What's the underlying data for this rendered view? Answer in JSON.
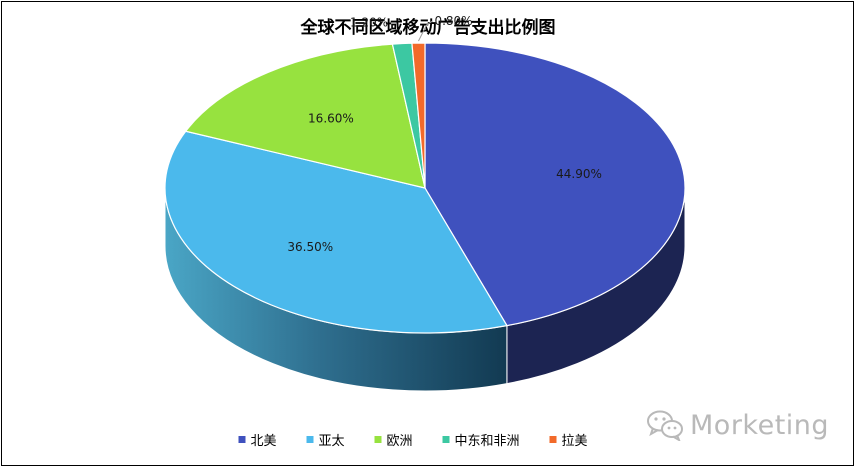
{
  "chart_data": {
    "type": "pie",
    "title": "全球不同区域移动广告支出比例图",
    "categories": [
      "北美",
      "亚太",
      "欧洲",
      "中东和非洲",
      "拉美"
    ],
    "values": [
      44.9,
      36.5,
      16.6,
      1.2,
      0.8
    ],
    "data_labels": [
      "44.90%",
      "36.50%",
      "16.60%",
      "1.20%",
      "0.80%"
    ],
    "colors": [
      "#3F51BE",
      "#4BB9EC",
      "#97E23F",
      "#3CC8A2",
      "#F26A2A"
    ],
    "legend_position": "bottom",
    "style": "3d"
  },
  "watermark": {
    "text": "Morketing",
    "icon": "wechat-bubble-icon"
  }
}
